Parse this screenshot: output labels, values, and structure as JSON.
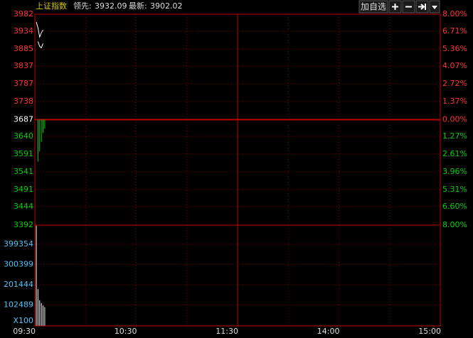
{
  "header": {
    "index_name": "上证指数",
    "lead_label": "领先:",
    "lead_value": "3932.09",
    "latest_label": "最新:",
    "latest_value": "3902.02",
    "button_add": "加自选"
  },
  "chart_data": [
    {
      "type": "line",
      "base": 3687,
      "x": [
        0,
        1,
        2,
        3,
        4,
        5
      ],
      "series": [
        {
          "color": "#ffffff",
          "values": [
            3960,
            3944,
            3918,
            3930,
            3938,
            null
          ]
        },
        {
          "color": "#ffffff",
          "values": [
            null,
            3906,
            3892,
            3888,
            3900,
            null
          ]
        },
        {
          "kind": "bar",
          "color": "#00d200",
          "values": [
            null,
            3570,
            3598,
            3625,
            3650,
            3662
          ]
        }
      ],
      "ylim": [
        3392,
        3982
      ],
      "yticks": [
        3392,
        3444,
        3491,
        3541,
        3591,
        3640,
        3687,
        3738,
        3787,
        3837,
        3885,
        3934,
        3982
      ],
      "y2lim": [
        -8,
        8
      ],
      "y2ticks": [
        {
          "value": 8,
          "label": "8.00%"
        },
        {
          "value": 6.71,
          "label": "6.71%"
        },
        {
          "value": 5.36,
          "label": "5.36%"
        },
        {
          "value": 4.07,
          "label": "4.07%"
        },
        {
          "value": 2.72,
          "label": "2.72%"
        },
        {
          "value": 1.37,
          "label": "1.37%"
        },
        {
          "value": 0,
          "label": "0.00%"
        },
        {
          "value": -1.27,
          "label": "1.27%"
        },
        {
          "value": -2.61,
          "label": "2.61%"
        },
        {
          "value": -3.96,
          "label": "3.96%"
        },
        {
          "value": -5.31,
          "label": "5.31%"
        },
        {
          "value": -6.6,
          "label": "6.60%"
        },
        {
          "value": -8,
          "label": "8.00%"
        }
      ],
      "xlim": [
        0,
        240
      ],
      "xgrid": [
        30,
        60,
        90,
        120,
        150,
        180,
        210
      ]
    },
    {
      "type": "bar",
      "color": "#ffffff",
      "x": [
        0,
        1,
        2,
        3,
        4,
        5
      ],
      "values": [
        490000,
        180000,
        125000,
        112000,
        100000,
        92000
      ],
      "ylim": [
        0,
        493000
      ],
      "yticks": [
        102489,
        201444,
        300399,
        399354
      ],
      "unit_label": "X100",
      "xlim": [
        0,
        240
      ],
      "xgrid": [
        30,
        60,
        90,
        120,
        150,
        180,
        210
      ],
      "xticks": [
        {
          "value": 0,
          "label": "09:30"
        },
        {
          "value": 60,
          "label": "10:30"
        },
        {
          "value": 120,
          "label": "11:30"
        },
        {
          "value": 180,
          "label": "14:00"
        },
        {
          "value": 240,
          "label": "15:00"
        }
      ]
    }
  ]
}
